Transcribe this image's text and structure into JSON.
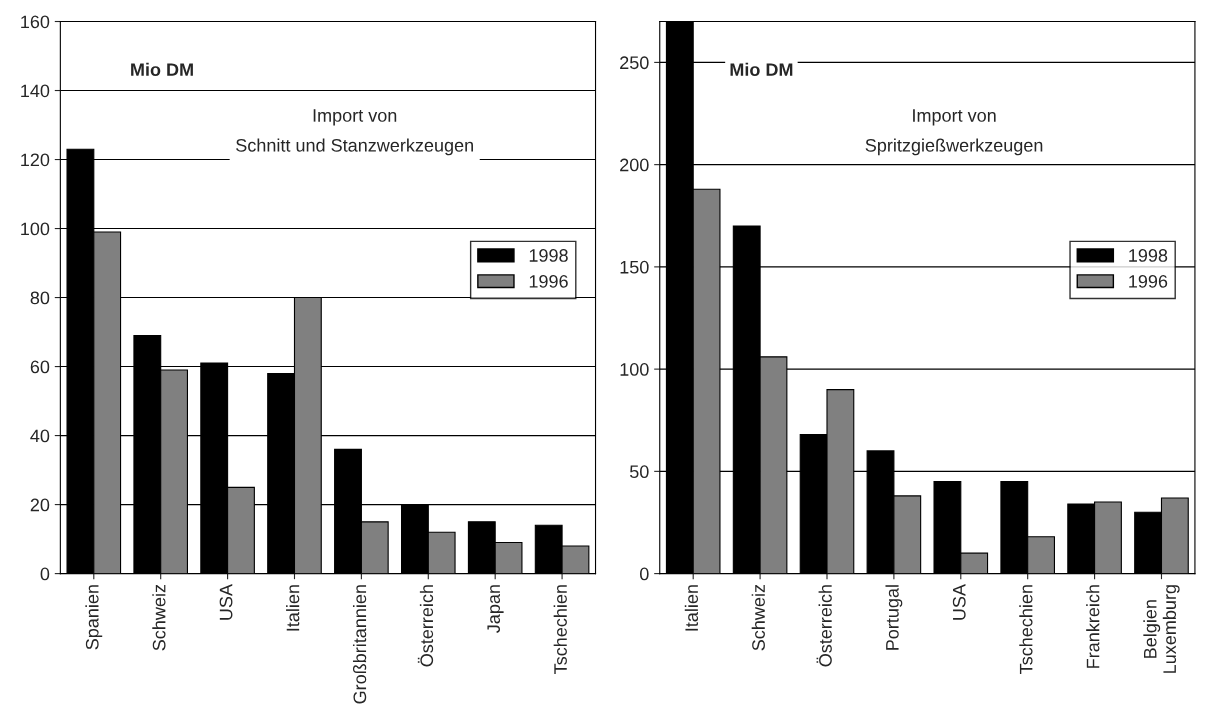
{
  "chart_data": [
    {
      "type": "bar",
      "title": "Import von\nSchnitt und Stanzwerkzeugen",
      "ylabel": "Mio DM",
      "categories": [
        "Spanien",
        "Schweiz",
        "USA",
        "Italien",
        "Großbritannien",
        "Österreich",
        "Japan",
        "Tschechien"
      ],
      "series": [
        {
          "name": "1998",
          "color": "#000000",
          "values": [
            123,
            69,
            61,
            58,
            36,
            20,
            15,
            14
          ]
        },
        {
          "name": "1996",
          "color": "#808080",
          "values": [
            99,
            59,
            25,
            80,
            15,
            12,
            9,
            8
          ]
        }
      ],
      "ylim": [
        0,
        160
      ],
      "yticks": [
        0,
        20,
        40,
        60,
        80,
        100,
        120,
        140,
        160
      ],
      "grid": "y",
      "legend": "right"
    },
    {
      "type": "bar",
      "title": "Import von\nSpritzgießwerkzeugen",
      "ylabel": "Mio DM",
      "categories": [
        "Italien",
        "Schweiz",
        "Österreich",
        "Portugal",
        "USA",
        "Tschechien",
        "Frankreich",
        "Belgien\nLuxemburg"
      ],
      "series": [
        {
          "name": "1998",
          "color": "#000000",
          "values": [
            270,
            170,
            68,
            60,
            45,
            45,
            34,
            30
          ]
        },
        {
          "name": "1996",
          "color": "#808080",
          "values": [
            188,
            106,
            90,
            38,
            10,
            18,
            35,
            37
          ]
        }
      ],
      "ylim": [
        0,
        270
      ],
      "yticks": [
        0,
        50,
        100,
        150,
        200,
        250
      ],
      "grid": "y",
      "legend": "right"
    }
  ]
}
